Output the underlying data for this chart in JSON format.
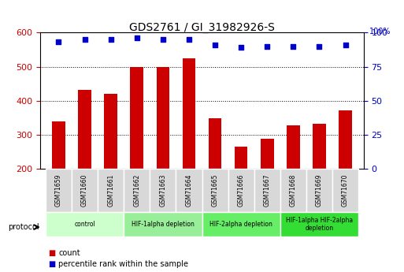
{
  "title": "GDS2761 / GI_31982926-S",
  "samples": [
    "GSM71659",
    "GSM71660",
    "GSM71661",
    "GSM71662",
    "GSM71663",
    "GSM71664",
    "GSM71665",
    "GSM71666",
    "GSM71667",
    "GSM71668",
    "GSM71669",
    "GSM71670"
  ],
  "counts": [
    338,
    432,
    420,
    500,
    498,
    525,
    348,
    265,
    287,
    328,
    332,
    372
  ],
  "percentile_ranks": [
    93,
    95,
    95,
    96,
    95,
    95,
    91,
    89,
    90,
    90,
    90,
    91
  ],
  "ylim_left": [
    200,
    600
  ],
  "ylim_right": [
    0,
    100
  ],
  "yticks_left": [
    200,
    300,
    400,
    500,
    600
  ],
  "yticks_right": [
    0,
    25,
    50,
    75,
    100
  ],
  "bar_color": "#cc0000",
  "dot_color": "#0000cc",
  "bg_color": "#f0f0f0",
  "protocol_groups": [
    {
      "label": "control",
      "start": 0,
      "end": 2,
      "color": "#ccffcc"
    },
    {
      "label": "HIF-1alpha depletion",
      "start": 3,
      "end": 5,
      "color": "#99ee99"
    },
    {
      "label": "HIF-2alpha depletion",
      "start": 6,
      "end": 8,
      "color": "#66ee66"
    },
    {
      "label": "HIF-1alpha HIF-2alpha\ndepletion",
      "start": 9,
      "end": 11,
      "color": "#33dd33"
    }
  ],
  "xlabel": "",
  "ylabel_left": "",
  "ylabel_right": "",
  "legend_count_color": "#cc0000",
  "legend_dot_color": "#0000cc"
}
